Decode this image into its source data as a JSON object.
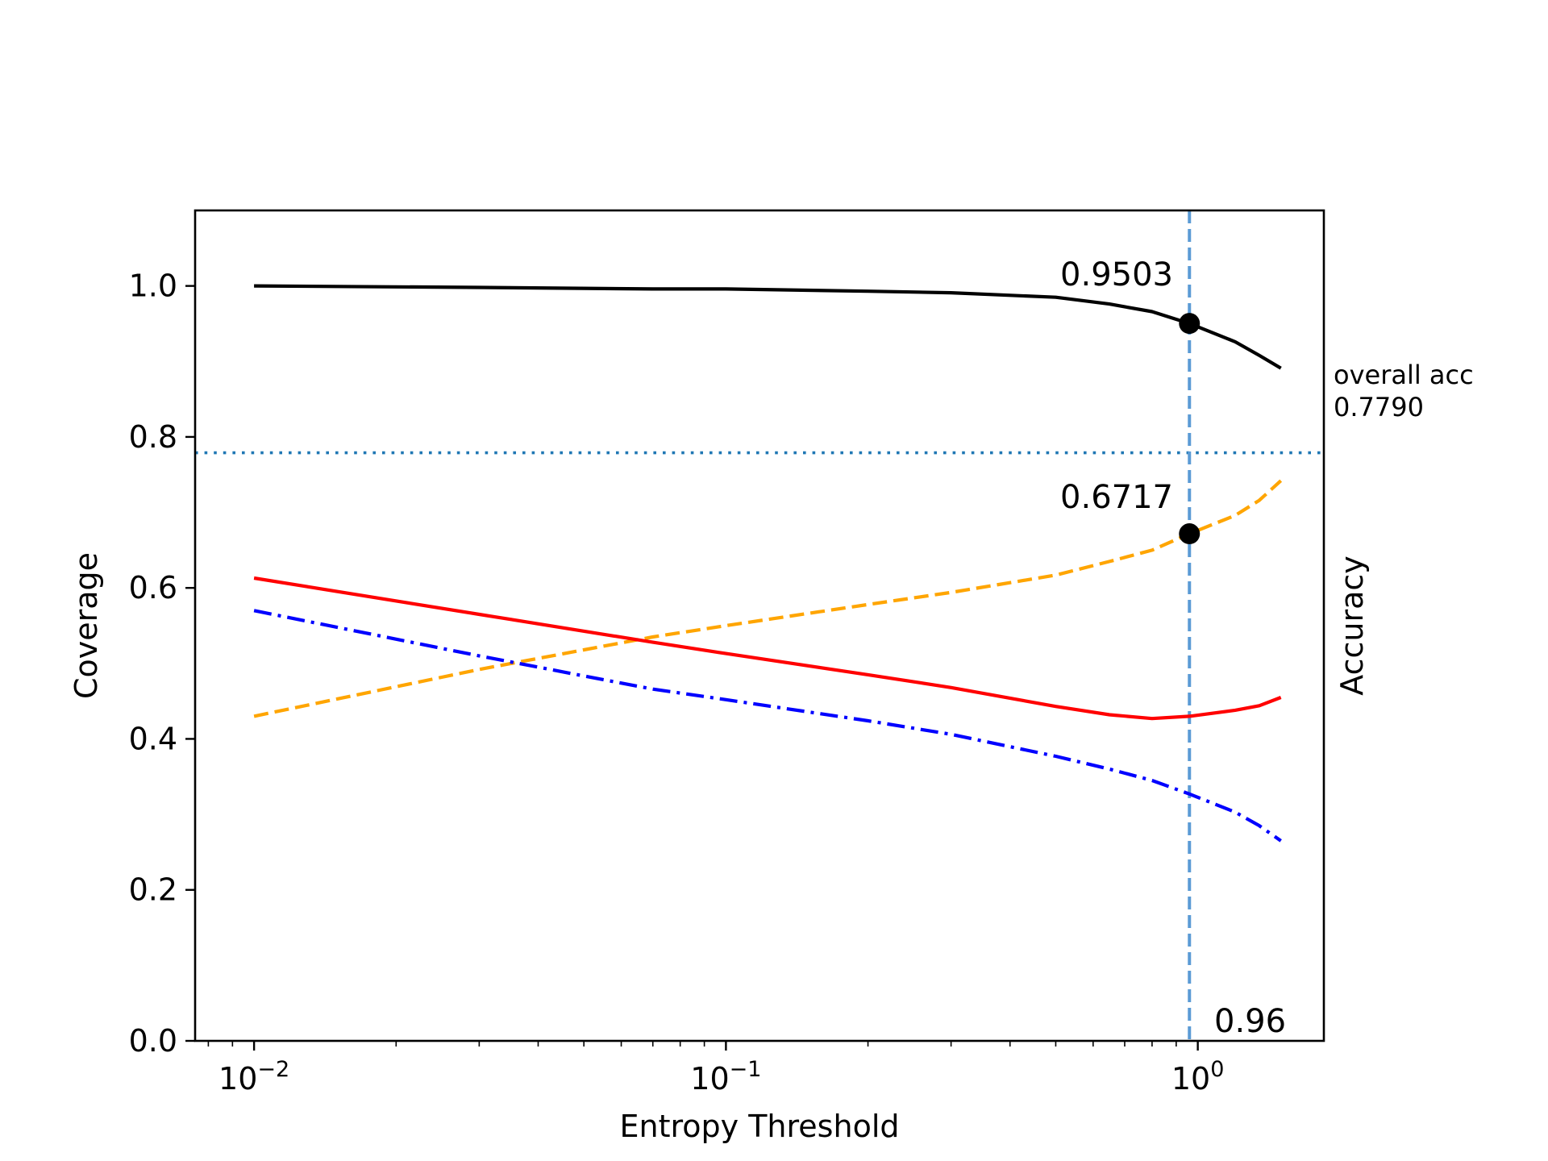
{
  "chart_data": {
    "type": "line",
    "title": "",
    "xlabel": "Entropy Threshold",
    "ylabel_left": "Coverage",
    "ylabel_right": "Accuracy",
    "xscale": "log",
    "xlim": [
      0.0075,
      1.85
    ],
    "ylim": [
      0.0,
      1.1
    ],
    "x_ticks": [
      {
        "value": 0.01,
        "base": "10",
        "exp": "−2"
      },
      {
        "value": 0.1,
        "base": "10",
        "exp": "−1"
      },
      {
        "value": 1.0,
        "base": "10",
        "exp": "0"
      }
    ],
    "y_ticks": [
      {
        "value": 0.0,
        "label": "0.0"
      },
      {
        "value": 0.2,
        "label": "0.2"
      },
      {
        "value": 0.4,
        "label": "0.4"
      },
      {
        "value": 0.6,
        "label": "0.6"
      },
      {
        "value": 0.8,
        "label": "0.8"
      },
      {
        "value": 1.0,
        "label": "1.0"
      }
    ],
    "series": [
      {
        "name": "coverage",
        "color": "#000000",
        "style": "solid",
        "x": [
          0.01,
          0.03,
          0.07,
          0.1,
          0.2,
          0.3,
          0.5,
          0.65,
          0.8,
          0.96,
          1.2,
          1.35,
          1.5
        ],
        "values": [
          1.0,
          0.998,
          0.996,
          0.996,
          0.993,
          0.991,
          0.985,
          0.976,
          0.966,
          0.9503,
          0.926,
          0.908,
          0.891
        ]
      },
      {
        "name": "accuracy-orange",
        "color": "#ffa500",
        "style": "dashed",
        "x": [
          0.01,
          0.03,
          0.07,
          0.1,
          0.2,
          0.3,
          0.5,
          0.65,
          0.8,
          0.96,
          1.2,
          1.35,
          1.5
        ],
        "values": [
          0.43,
          0.492,
          0.535,
          0.55,
          0.578,
          0.594,
          0.617,
          0.635,
          0.65,
          0.6717,
          0.696,
          0.716,
          0.742
        ]
      },
      {
        "name": "accuracy-red",
        "color": "#ff0000",
        "style": "solid",
        "x": [
          0.01,
          0.03,
          0.07,
          0.1,
          0.2,
          0.3,
          0.5,
          0.65,
          0.8,
          0.96,
          1.2,
          1.35,
          1.5
        ],
        "values": [
          0.613,
          0.565,
          0.528,
          0.513,
          0.485,
          0.468,
          0.443,
          0.432,
          0.427,
          0.43,
          0.438,
          0.444,
          0.455
        ]
      },
      {
        "name": "accuracy-blue",
        "color": "#0000ff",
        "style": "dashdot",
        "x": [
          0.01,
          0.03,
          0.07,
          0.1,
          0.2,
          0.3,
          0.5,
          0.65,
          0.8,
          0.96,
          1.2,
          1.35,
          1.5
        ],
        "values": [
          0.57,
          0.51,
          0.466,
          0.452,
          0.424,
          0.406,
          0.377,
          0.36,
          0.345,
          0.327,
          0.303,
          0.285,
          0.265
        ]
      }
    ],
    "hline": {
      "value": 0.779,
      "color": "#1f77b4",
      "style": "dotted",
      "label_line1": "overall acc",
      "label_line2": "0.7790"
    },
    "vline": {
      "value": 0.96,
      "color": "#5b9bd5",
      "style": "dashed",
      "label": "0.96"
    },
    "markers": [
      {
        "x": 0.96,
        "y": 0.9503,
        "label": "0.9503"
      },
      {
        "x": 0.96,
        "y": 0.6717,
        "label": "0.6717"
      }
    ]
  }
}
